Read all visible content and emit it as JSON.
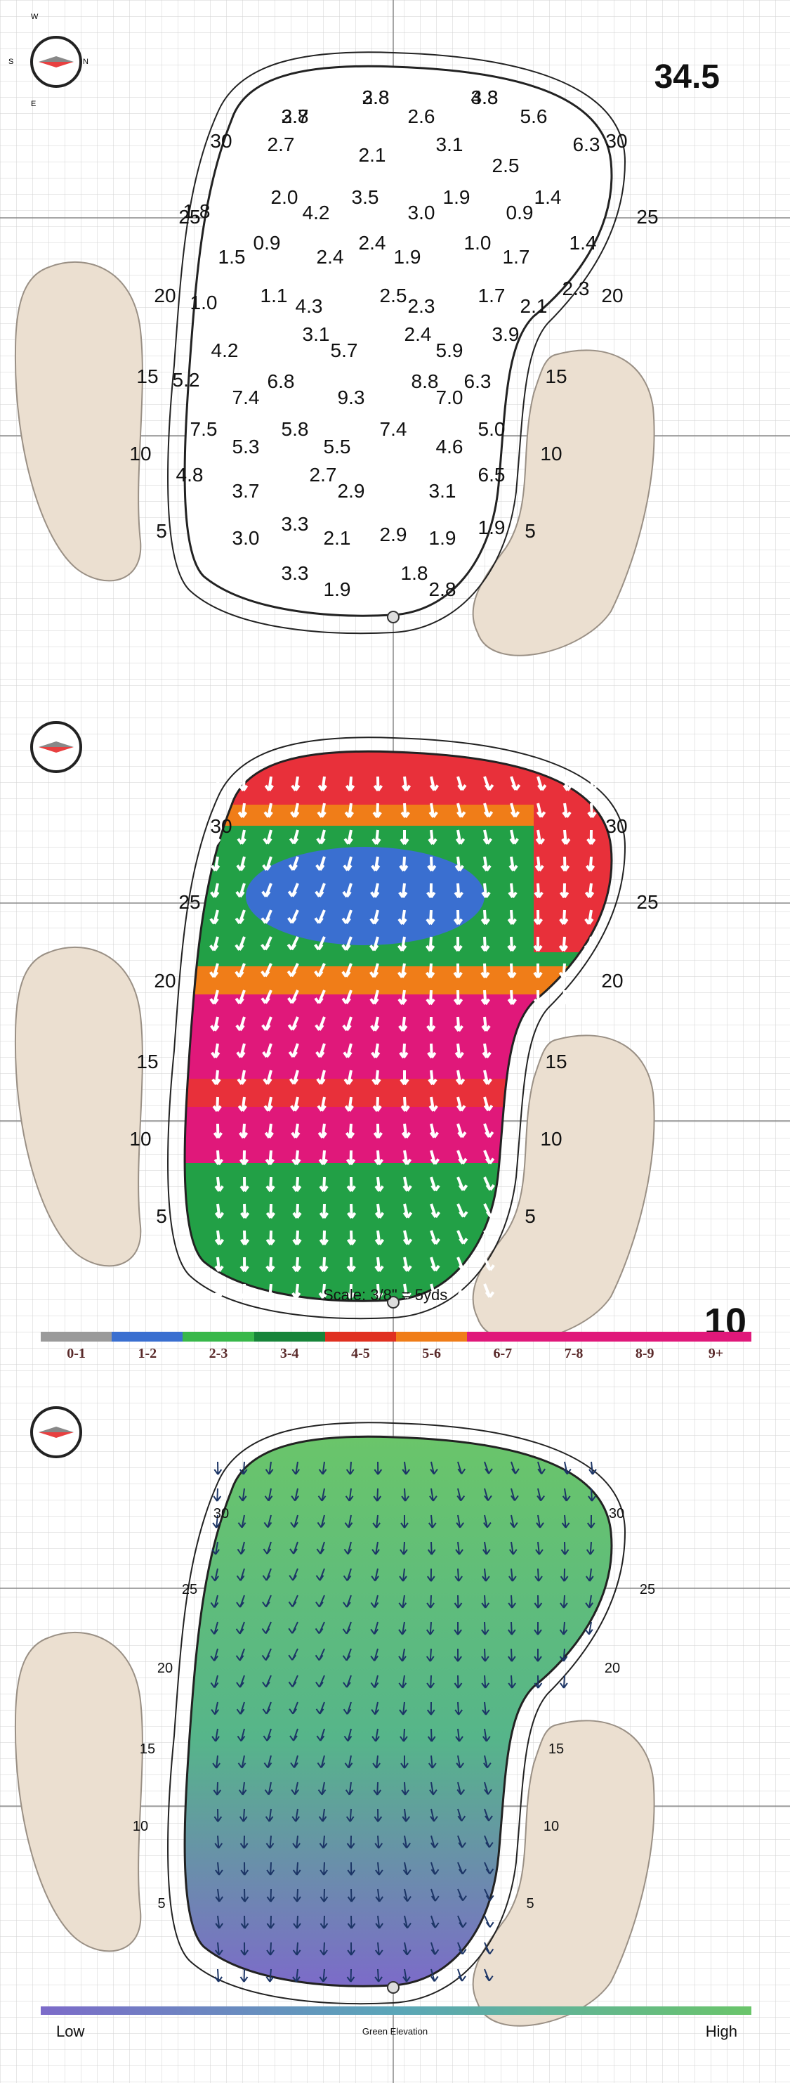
{
  "compass": {
    "n": "N",
    "s": "S",
    "e": "E",
    "w": "W"
  },
  "green_yardage": "34.5",
  "green_id": "10",
  "scale_text": "Scale: 3/8\" = 5yds",
  "edge_distances": [
    "30",
    "25",
    "20",
    "15",
    "10",
    "5"
  ],
  "slope_values": [
    "2.8",
    "4.8",
    "3.7",
    "2.6",
    "5.6",
    "2.7",
    "2.1",
    "3.1",
    "6.3",
    "2.5",
    "2.0",
    "3.5",
    "1.9",
    "1.4",
    "1.8",
    "4.2",
    "3.0",
    "0.9",
    "0.9",
    "2.4",
    "1.0",
    "1.4",
    "1.5",
    "2.4",
    "1.9",
    "1.7",
    "1.1",
    "2.5",
    "1.7",
    "2.3",
    "1.0",
    "4.3",
    "2.3",
    "2.1",
    "3.1",
    "2.4",
    "3.9",
    "4.2",
    "5.7",
    "5.9",
    "5.2",
    "6.8",
    "8.8",
    "6.3",
    "7.4",
    "9.3",
    "7.0",
    "7.5",
    "5.8",
    "7.4",
    "5.0",
    "5.3",
    "5.5",
    "4.6",
    "4.8",
    "2.7",
    "6.5",
    "3.7",
    "2.9",
    "3.1",
    "3.3",
    "2.9",
    "1.9",
    "3.0",
    "2.1",
    "1.9",
    "3.3",
    "1.8",
    "1.9",
    "2.8",
    "3.8",
    "3.3",
    "2.8"
  ],
  "legend": {
    "labels": [
      "0-1",
      "1-2",
      "2-3",
      "3-4",
      "4-5",
      "5-6",
      "6-7",
      "7-8",
      "8-9",
      "9+"
    ],
    "colors": [
      "#9a9a9a",
      "#3a6fd0",
      "#38b84a",
      "#17853a",
      "#e03020",
      "#f07d18",
      "#e0187a",
      "#e0187a",
      "#e0187a",
      "#e0187a"
    ]
  },
  "elevation": {
    "low": "Low",
    "high": "High",
    "title": "Green Elevation"
  }
}
